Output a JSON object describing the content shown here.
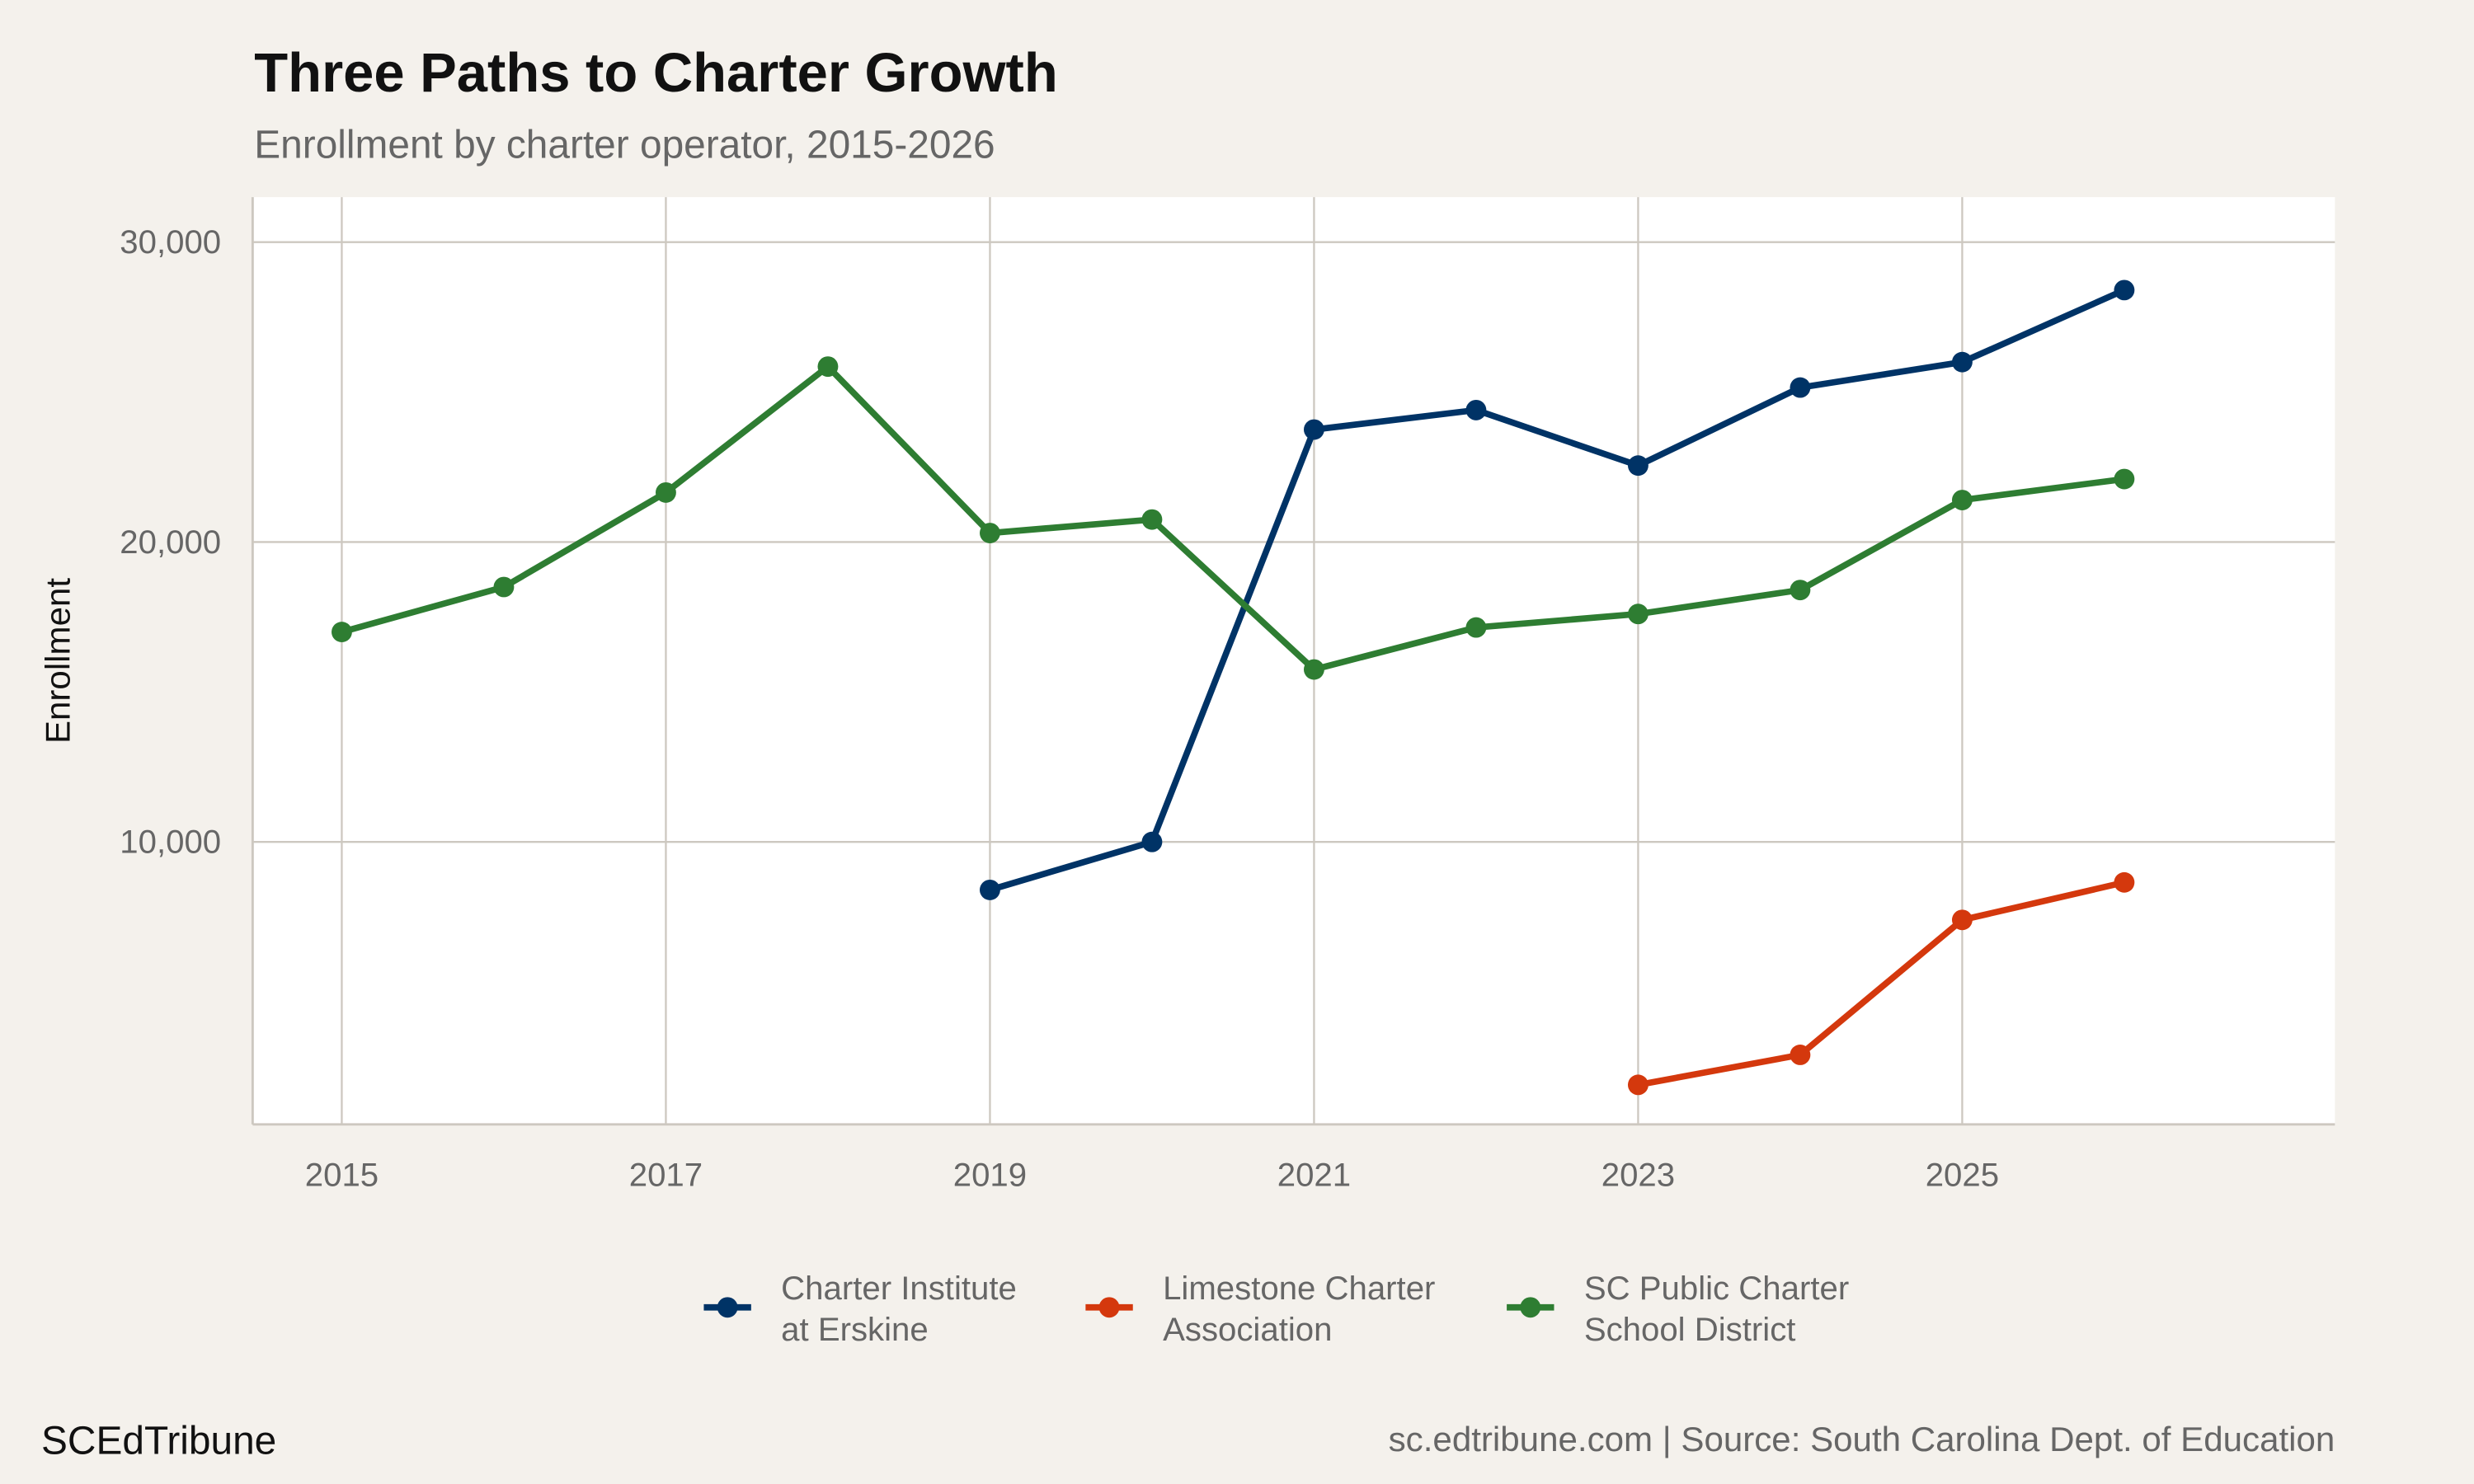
{
  "chart_data": {
    "type": "line",
    "title": "Three Paths to Charter Growth",
    "subtitle": "Enrollment by charter operator, 2015-2026",
    "xlabel": "",
    "ylabel": "Enrollment",
    "xlim": [
      2014.45,
      2027.3
    ],
    "ylim": [
      580,
      31500
    ],
    "x_ticks": [
      2015,
      2017,
      2019,
      2021,
      2023,
      2025
    ],
    "x_tick_labels": [
      "2015",
      "2017",
      "2019",
      "2021",
      "2023",
      "2025"
    ],
    "y_ticks": [
      10000,
      20000,
      30000
    ],
    "y_tick_labels": [
      "10,000",
      "20,000",
      "30,000"
    ],
    "grid": true,
    "legend_position": "bottom",
    "series": [
      {
        "name": "Charter Institute at Erskine",
        "legend_lines": [
          "Charter Institute",
          "at Erskine"
        ],
        "color": "#003366",
        "x": [
          2019,
          2020,
          2021,
          2022,
          2023,
          2024,
          2025,
          2026
        ],
        "values": [
          8400,
          10000,
          23750,
          24400,
          22550,
          25150,
          26000,
          28400
        ]
      },
      {
        "name": "Limestone Charter Association",
        "legend_lines": [
          "Limestone Charter",
          "Association"
        ],
        "color": "#d4380d",
        "x": [
          2023,
          2024,
          2025,
          2026
        ],
        "values": [
          1900,
          2900,
          7400,
          8650
        ]
      },
      {
        "name": "SC Public Charter School District",
        "legend_lines": [
          "SC Public Charter",
          "School District"
        ],
        "color": "#2e7d32",
        "x": [
          2015,
          2016,
          2017,
          2018,
          2019,
          2020,
          2021,
          2022,
          2023,
          2024,
          2025,
          2026
        ],
        "values": [
          17000,
          18500,
          21650,
          25850,
          20300,
          20750,
          15750,
          17150,
          17600,
          18400,
          21400,
          22100
        ]
      }
    ]
  },
  "footer": {
    "brand": "SCEdTribune",
    "source": "sc.edtribune.com | Source: South Carolina Dept. of Education"
  },
  "colors": {
    "background": "#f4f1ec",
    "panel": "#ffffff",
    "grid": "#cdc8c0"
  }
}
